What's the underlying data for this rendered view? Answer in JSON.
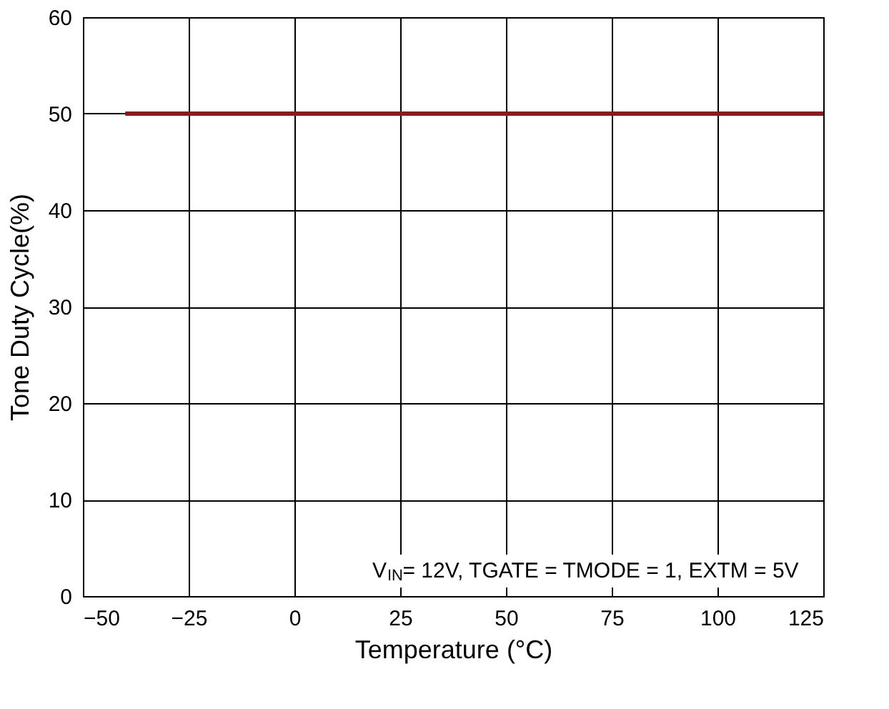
{
  "chart_data": {
    "type": "line",
    "xlabel": "Temperature (°C)",
    "ylabel": "Tone Duty Cycle(%)",
    "x": [
      -40,
      125
    ],
    "series": [
      {
        "color": "#8b1a1a",
        "values": [
          50,
          50
        ]
      }
    ],
    "xlim": [
      -50,
      125
    ],
    "xticks": [
      -50,
      -25,
      0,
      25,
      50,
      75,
      100,
      125
    ],
    "ylim": [
      0,
      60
    ],
    "yticks": [
      0,
      10,
      20,
      30,
      40,
      50,
      60
    ],
    "grid": true,
    "marker": "none",
    "line_style": "solid",
    "annotations": [
      "V$_{IN}$= 12V, TGATE = TMODE = 1, EXTM = 5V"
    ]
  }
}
